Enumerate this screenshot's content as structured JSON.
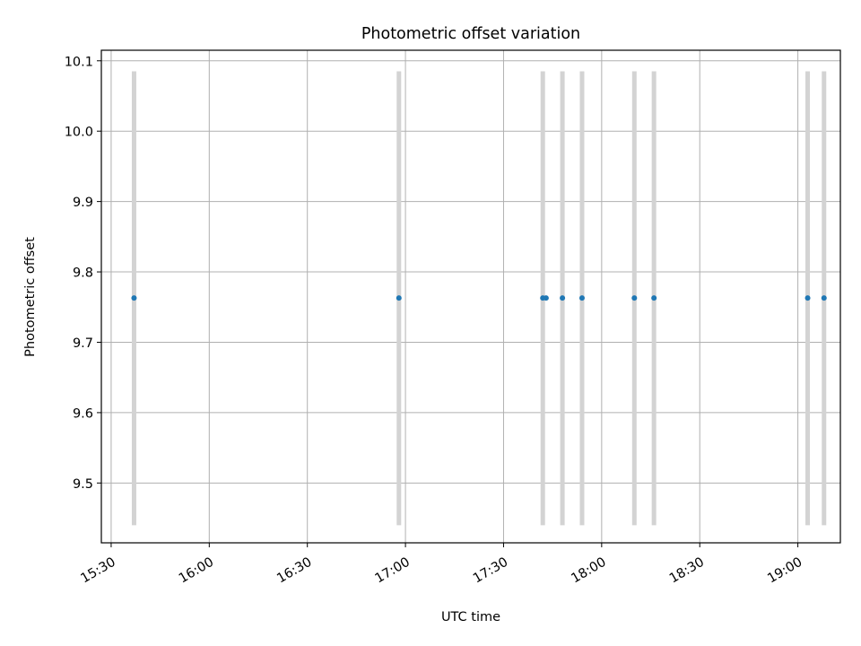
{
  "chart_data": {
    "type": "scatter",
    "title": "Photometric offset variation",
    "xlabel": "UTC time",
    "ylabel": "Photometric offset",
    "xlim": [
      "15:27",
      "19:13"
    ],
    "ylim": [
      9.415,
      10.115
    ],
    "x_ticks": [
      "15:30",
      "16:00",
      "16:30",
      "17:00",
      "17:30",
      "18:00",
      "18:30",
      "19:00"
    ],
    "y_ticks": [
      "9.5",
      "9.6",
      "9.7",
      "9.8",
      "9.9",
      "10.0",
      "10.1"
    ],
    "grid": true,
    "series": [
      {
        "x": [
          "15:37",
          "16:58",
          "17:42",
          "17:43",
          "17:48",
          "17:54",
          "18:10",
          "18:16",
          "19:03",
          "19:08"
        ],
        "y": [
          9.763,
          9.763,
          9.763,
          9.763,
          9.763,
          9.763,
          9.763,
          9.763,
          9.763,
          9.763
        ],
        "color": "#1f77b4"
      }
    ],
    "error_bands": {
      "x": [
        "15:37",
        "16:58",
        "17:42",
        "17:48",
        "17:54",
        "18:10",
        "18:16",
        "19:03",
        "19:08"
      ],
      "y_low": 9.44,
      "y_high": 10.085,
      "color": "#d3d3d3"
    }
  }
}
